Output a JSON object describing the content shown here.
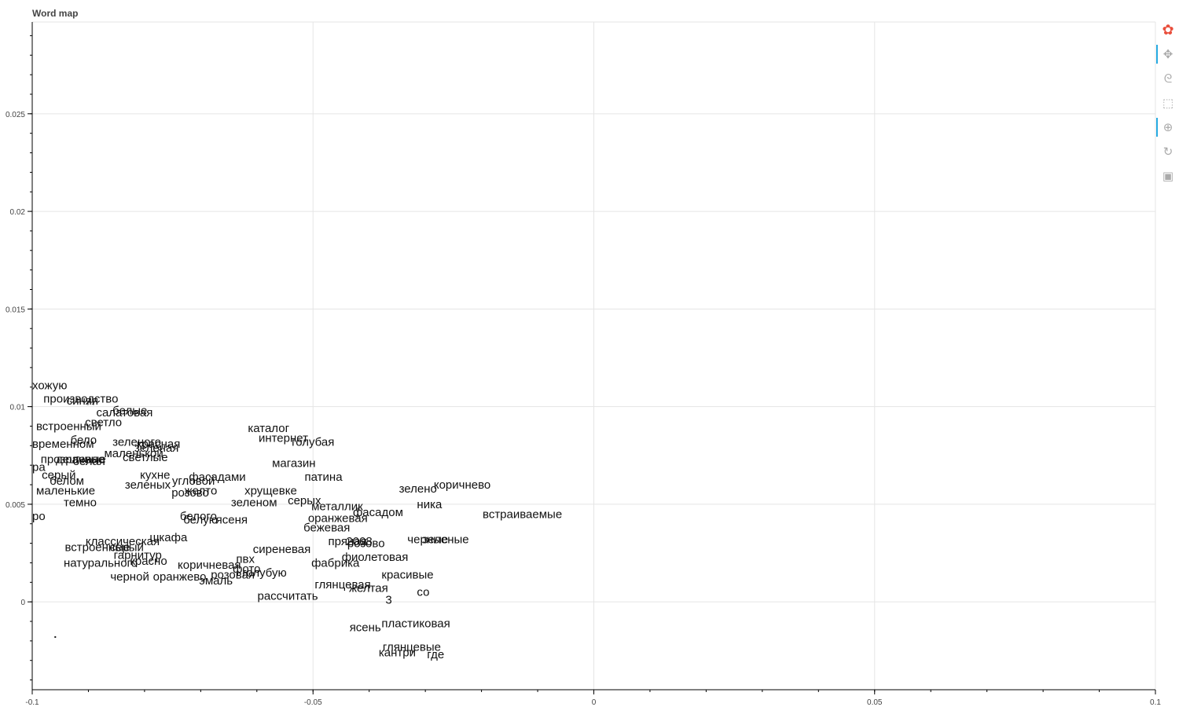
{
  "title": "Word map",
  "colors": {
    "grid": "#e5e5e5",
    "text": "#111111",
    "active_tool": "#26aae1"
  },
  "toolbar": [
    {
      "name": "bokeh-logo-icon",
      "glyph": "✿",
      "active": false
    },
    {
      "name": "pan-tool-icon",
      "glyph": "✥",
      "active": true
    },
    {
      "name": "lasso-select-icon",
      "glyph": "ᘓ",
      "active": false
    },
    {
      "name": "box-zoom-icon",
      "glyph": "⬚",
      "active": false
    },
    {
      "name": "wheel-zoom-icon",
      "glyph": "⊕",
      "active": true
    },
    {
      "name": "reset-icon",
      "glyph": "↻",
      "active": false
    },
    {
      "name": "save-icon",
      "glyph": "▣",
      "active": false
    }
  ],
  "chart_data": {
    "type": "scatter",
    "title": "Word map",
    "xlim": [
      -0.1,
      0.1
    ],
    "ylim": [
      -0.0045,
      0.0297
    ],
    "x_ticks": [
      -0.1,
      -0.05,
      0,
      0.05,
      0.1
    ],
    "x_tick_labels": [
      "-0.1",
      "-0.05",
      "0",
      "0.05",
      "0.1"
    ],
    "y_ticks": [
      0,
      0.005,
      0.01,
      0.015,
      0.02,
      0.025
    ],
    "y_tick_labels": [
      "0",
      "0.005",
      "0.01",
      "0.015",
      "0.02",
      "0.025"
    ],
    "grid": true,
    "points": [
      {
        "label": "хожую",
        "x": -0.1,
        "y": 0.0109
      },
      {
        "label": "производство",
        "x": -0.098,
        "y": 0.0102
      },
      {
        "label": "синяя",
        "x": -0.0939,
        "y": 0.0101
      },
      {
        "label": "белые",
        "x": -0.0857,
        "y": 0.0096
      },
      {
        "label": "салатовая",
        "x": -0.0886,
        "y": 0.0095
      },
      {
        "label": "светло",
        "x": -0.0906,
        "y": 0.009
      },
      {
        "label": "встроенный",
        "x": -0.0993,
        "y": 0.0088
      },
      {
        "label": "бело",
        "x": -0.0932,
        "y": 0.0081
      },
      {
        "label": "зеленого",
        "x": -0.0857,
        "y": 0.008
      },
      {
        "label": "красная",
        "x": -0.0814,
        "y": 0.0079
      },
      {
        "label": "зеленая",
        "x": -0.0818,
        "y": 0.0077
      },
      {
        "label": "временном",
        "x": -0.1,
        "y": 0.0079
      },
      {
        "label": "маленькой",
        "x": -0.0872,
        "y": 0.0074
      },
      {
        "label": "светлые",
        "x": -0.0839,
        "y": 0.0072
      },
      {
        "label": "каталог",
        "x": -0.0616,
        "y": 0.0087
      },
      {
        "label": "интернет",
        "x": -0.0597,
        "y": 0.0082
      },
      {
        "label": "голубая",
        "x": -0.0538,
        "y": 0.008
      },
      {
        "label": "магазин",
        "x": -0.0573,
        "y": 0.0069
      },
      {
        "label": "прозрачные",
        "x": -0.0985,
        "y": 0.0071
      },
      {
        "label": "дешевле",
        "x": -0.0958,
        "y": 0.0071
      },
      {
        "label": "белая",
        "x": -0.0928,
        "y": 0.007
      },
      {
        "label": "ра",
        "x": -0.1,
        "y": 0.0067
      },
      {
        "label": "серый",
        "x": -0.0983,
        "y": 0.0063
      },
      {
        "label": "кухне",
        "x": -0.0808,
        "y": 0.0063
      },
      {
        "label": "угловой",
        "x": -0.0751,
        "y": 0.006
      },
      {
        "label": "фасадами",
        "x": -0.0721,
        "y": 0.0062
      },
      {
        "label": "патина",
        "x": -0.0515,
        "y": 0.0062
      },
      {
        "label": "белом",
        "x": -0.0969,
        "y": 0.006
      },
      {
        "label": "зеленых",
        "x": -0.0835,
        "y": 0.0058
      },
      {
        "label": "маленькие",
        "x": -0.0993,
        "y": 0.0055
      },
      {
        "label": "желто",
        "x": -0.0729,
        "y": 0.0055
      },
      {
        "label": "розово",
        "x": -0.0752,
        "y": 0.0054
      },
      {
        "label": "хрущевке",
        "x": -0.0622,
        "y": 0.0055
      },
      {
        "label": "зелено",
        "x": -0.0347,
        "y": 0.0056
      },
      {
        "label": "коричнево",
        "x": -0.0285,
        "y": 0.0058
      },
      {
        "label": "темно",
        "x": -0.0944,
        "y": 0.0049
      },
      {
        "label": "зеленом",
        "x": -0.0646,
        "y": 0.0049
      },
      {
        "label": "серых",
        "x": -0.0545,
        "y": 0.005
      },
      {
        "label": "металлик",
        "x": -0.0503,
        "y": 0.0047
      },
      {
        "label": "ника",
        "x": -0.0315,
        "y": 0.0048
      },
      {
        "label": "фасадом",
        "x": -0.0429,
        "y": 0.0044
      },
      {
        "label": "встраиваемые",
        "x": -0.0198,
        "y": 0.0043
      },
      {
        "label": "ро",
        "x": -0.1,
        "y": 0.0042
      },
      {
        "label": "белого",
        "x": -0.0737,
        "y": 0.0042
      },
      {
        "label": "белую",
        "x": -0.0731,
        "y": 0.004
      },
      {
        "label": "ясеня",
        "x": -0.0673,
        "y": 0.004
      },
      {
        "label": "оранжевая",
        "x": -0.0509,
        "y": 0.0041
      },
      {
        "label": "бежевая",
        "x": -0.0517,
        "y": 0.0036
      },
      {
        "label": "шкафа",
        "x": -0.0791,
        "y": 0.0031
      },
      {
        "label": "классическая",
        "x": -0.0905,
        "y": 0.0029
      },
      {
        "label": "черные",
        "x": -0.0332,
        "y": 0.003
      },
      {
        "label": "зеленые",
        "x": -0.0305,
        "y": 0.003
      },
      {
        "label": "пряная",
        "x": -0.0473,
        "y": 0.0029
      },
      {
        "label": "2008",
        "x": -0.0441,
        "y": 0.0029
      },
      {
        "label": "розово",
        "x": -0.0439,
        "y": 0.0028
      },
      {
        "label": "встроенные",
        "x": -0.0942,
        "y": 0.0026
      },
      {
        "label": "серый",
        "x": -0.0862,
        "y": 0.0026
      },
      {
        "label": "сиреневая",
        "x": -0.0607,
        "y": 0.0025
      },
      {
        "label": "гарнитур",
        "x": -0.0855,
        "y": 0.0022
      },
      {
        "label": "фиолетовая",
        "x": -0.0449,
        "y": 0.0021
      },
      {
        "label": "пвх",
        "x": -0.0637,
        "y": 0.002
      },
      {
        "label": "красно",
        "x": -0.0826,
        "y": 0.0019
      },
      {
        "label": "натурального",
        "x": -0.0944,
        "y": 0.0018
      },
      {
        "label": "фабрика",
        "x": -0.0503,
        "y": 0.0018
      },
      {
        "label": "коричневая",
        "x": -0.0741,
        "y": 0.0017
      },
      {
        "label": "фото",
        "x": -0.0643,
        "y": 0.0015
      },
      {
        "label": "розовая",
        "x": -0.0682,
        "y": 0.0012
      },
      {
        "label": "голубую",
        "x": -0.0626,
        "y": 0.0013
      },
      {
        "label": "красивые",
        "x": -0.0378,
        "y": 0.0012
      },
      {
        "label": "черной",
        "x": -0.0861,
        "y": 0.0011
      },
      {
        "label": "оранжево",
        "x": -0.0785,
        "y": 0.0011
      },
      {
        "label": "эмаль",
        "x": -0.0703,
        "y": 0.0009
      },
      {
        "label": "глянцевая",
        "x": -0.0497,
        "y": 0.0007
      },
      {
        "label": "желтая",
        "x": -0.0436,
        "y": 0.0005
      },
      {
        "label": "со",
        "x": -0.0315,
        "y": 0.0003
      },
      {
        "label": "рассчитать",
        "x": -0.0599,
        "y": 0.0001
      },
      {
        "label": "3",
        "x": -0.0371,
        "y": -0.0001
      },
      {
        "label": "ясень",
        "x": -0.0435,
        "y": -0.0015
      },
      {
        "label": "пластиковая",
        "x": -0.0378,
        "y": -0.0013
      },
      {
        "label": "глянцевые",
        "x": -0.0376,
        "y": -0.0025
      },
      {
        "label": "кантри",
        "x": -0.0383,
        "y": -0.0028
      },
      {
        "label": "где",
        "x": -0.0297,
        "y": -0.0029
      },
      {
        "label": "",
        "x": -0.0959,
        "y": -0.0018
      }
    ]
  }
}
